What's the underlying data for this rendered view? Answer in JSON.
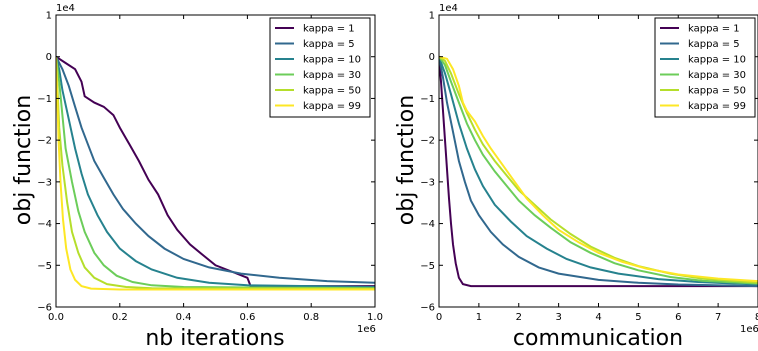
{
  "chart_data": [
    {
      "type": "line",
      "xlabel": "nb iterations",
      "ylabel": "obj function",
      "x_exponent": "1e6",
      "y_exponent": "1e4",
      "xlim": [
        0,
        1.0
      ],
      "ylim": [
        -6,
        1
      ],
      "xticks": [
        "0.0",
        "0.2",
        "0.4",
        "0.6",
        "0.8",
        "1.0"
      ],
      "yticks": [
        "1",
        "0",
        "−1",
        "−2",
        "−3",
        "−4",
        "−5",
        "−6"
      ],
      "grid": false,
      "legend_position": "top-right",
      "series": [
        {
          "name": "kappa = 1",
          "color": "#440154",
          "points": [
            [
              0,
              0
            ],
            [
              0.03,
              -0.15
            ],
            [
              0.06,
              -0.3
            ],
            [
              0.08,
              -0.6
            ],
            [
              0.09,
              -0.95
            ],
            [
              0.12,
              -1.1
            ],
            [
              0.15,
              -1.2
            ],
            [
              0.18,
              -1.4
            ],
            [
              0.2,
              -1.7
            ],
            [
              0.23,
              -2.1
            ],
            [
              0.26,
              -2.5
            ],
            [
              0.29,
              -2.95
            ],
            [
              0.32,
              -3.3
            ],
            [
              0.35,
              -3.8
            ],
            [
              0.38,
              -4.15
            ],
            [
              0.42,
              -4.5
            ],
            [
              0.46,
              -4.75
            ],
            [
              0.5,
              -5.0
            ],
            [
              0.55,
              -5.15
            ],
            [
              0.6,
              -5.3
            ],
            [
              0.61,
              -5.5
            ],
            [
              0.7,
              -5.5
            ],
            [
              1.0,
              -5.5
            ]
          ]
        },
        {
          "name": "kappa = 5",
          "color": "#31688e",
          "points": [
            [
              0,
              0
            ],
            [
              0.02,
              -0.3
            ],
            [
              0.04,
              -0.7
            ],
            [
              0.06,
              -1.2
            ],
            [
              0.08,
              -1.7
            ],
            [
              0.1,
              -2.1
            ],
            [
              0.12,
              -2.5
            ],
            [
              0.15,
              -2.9
            ],
            [
              0.18,
              -3.3
            ],
            [
              0.21,
              -3.65
            ],
            [
              0.25,
              -4.0
            ],
            [
              0.29,
              -4.3
            ],
            [
              0.34,
              -4.6
            ],
            [
              0.4,
              -4.85
            ],
            [
              0.48,
              -5.05
            ],
            [
              0.58,
              -5.2
            ],
            [
              0.7,
              -5.3
            ],
            [
              0.85,
              -5.38
            ],
            [
              1.0,
              -5.42
            ]
          ]
        },
        {
          "name": "kappa = 10",
          "color": "#26828e",
          "points": [
            [
              0,
              0
            ],
            [
              0.01,
              -0.3
            ],
            [
              0.02,
              -0.8
            ],
            [
              0.04,
              -1.5
            ],
            [
              0.06,
              -2.2
            ],
            [
              0.08,
              -2.8
            ],
            [
              0.1,
              -3.3
            ],
            [
              0.13,
              -3.8
            ],
            [
              0.16,
              -4.2
            ],
            [
              0.2,
              -4.6
            ],
            [
              0.25,
              -4.9
            ],
            [
              0.3,
              -5.1
            ],
            [
              0.38,
              -5.3
            ],
            [
              0.48,
              -5.42
            ],
            [
              0.6,
              -5.48
            ],
            [
              0.8,
              -5.5
            ],
            [
              1.0,
              -5.52
            ]
          ]
        },
        {
          "name": "kappa = 30",
          "color": "#6ccd5a",
          "points": [
            [
              0,
              0
            ],
            [
              0.01,
              -0.6
            ],
            [
              0.02,
              -1.4
            ],
            [
              0.03,
              -2.2
            ],
            [
              0.05,
              -3.0
            ],
            [
              0.07,
              -3.7
            ],
            [
              0.09,
              -4.2
            ],
            [
              0.12,
              -4.7
            ],
            [
              0.15,
              -5.0
            ],
            [
              0.19,
              -5.25
            ],
            [
              0.24,
              -5.4
            ],
            [
              0.3,
              -5.48
            ],
            [
              0.4,
              -5.52
            ],
            [
              1.0,
              -5.55
            ]
          ]
        },
        {
          "name": "kappa = 50",
          "color": "#b5de2b",
          "points": [
            [
              0,
              0
            ],
            [
              0.005,
              -0.8
            ],
            [
              0.01,
              -1.7
            ],
            [
              0.02,
              -2.6
            ],
            [
              0.035,
              -3.5
            ],
            [
              0.05,
              -4.2
            ],
            [
              0.07,
              -4.7
            ],
            [
              0.09,
              -5.05
            ],
            [
              0.12,
              -5.3
            ],
            [
              0.16,
              -5.45
            ],
            [
              0.22,
              -5.52
            ],
            [
              0.3,
              -5.55
            ],
            [
              1.0,
              -5.56
            ]
          ]
        },
        {
          "name": "kappa = 99",
          "color": "#fde725",
          "points": [
            [
              0,
              0
            ],
            [
              0.004,
              -1.0
            ],
            [
              0.008,
              -2.0
            ],
            [
              0.014,
              -3.0
            ],
            [
              0.022,
              -3.9
            ],
            [
              0.032,
              -4.6
            ],
            [
              0.045,
              -5.1
            ],
            [
              0.06,
              -5.35
            ],
            [
              0.08,
              -5.5
            ],
            [
              0.11,
              -5.56
            ],
            [
              0.2,
              -5.58
            ],
            [
              1.0,
              -5.58
            ]
          ]
        }
      ]
    },
    {
      "type": "line",
      "xlabel": "communication",
      "ylabel": "obj function",
      "x_exponent": "1e6",
      "y_exponent": "1e4",
      "xlim": [
        0,
        8
      ],
      "ylim": [
        -6,
        1
      ],
      "xticks": [
        "0",
        "1",
        "2",
        "3",
        "4",
        "5",
        "6",
        "7",
        "8"
      ],
      "yticks": [
        "1",
        "0",
        "−1",
        "−2",
        "−3",
        "−4",
        "−5",
        "−6"
      ],
      "grid": false,
      "legend_position": "top-right",
      "series": [
        {
          "name": "kappa = 1",
          "color": "#440154",
          "points": [
            [
              0,
              0
            ],
            [
              0.05,
              -0.6
            ],
            [
              0.1,
              -1.3
            ],
            [
              0.15,
              -2.0
            ],
            [
              0.2,
              -2.7
            ],
            [
              0.25,
              -3.4
            ],
            [
              0.3,
              -4.0
            ],
            [
              0.35,
              -4.5
            ],
            [
              0.42,
              -4.95
            ],
            [
              0.5,
              -5.3
            ],
            [
              0.6,
              -5.45
            ],
            [
              0.8,
              -5.5
            ],
            [
              2,
              -5.5
            ],
            [
              8,
              -5.5
            ]
          ]
        },
        {
          "name": "kappa = 5",
          "color": "#31688e",
          "points": [
            [
              0,
              0
            ],
            [
              0.1,
              -0.5
            ],
            [
              0.2,
              -1.1
            ],
            [
              0.35,
              -1.8
            ],
            [
              0.5,
              -2.5
            ],
            [
              0.65,
              -3.0
            ],
            [
              0.8,
              -3.45
            ],
            [
              1.0,
              -3.8
            ],
            [
              1.3,
              -4.2
            ],
            [
              1.6,
              -4.5
            ],
            [
              2.0,
              -4.8
            ],
            [
              2.5,
              -5.05
            ],
            [
              3.0,
              -5.2
            ],
            [
              4.0,
              -5.35
            ],
            [
              5.0,
              -5.42
            ],
            [
              6.0,
              -5.46
            ],
            [
              8,
              -5.5
            ]
          ]
        },
        {
          "name": "kappa = 10",
          "color": "#26828e",
          "points": [
            [
              0,
              0
            ],
            [
              0.15,
              -0.4
            ],
            [
              0.3,
              -0.9
            ],
            [
              0.5,
              -1.6
            ],
            [
              0.7,
              -2.2
            ],
            [
              0.9,
              -2.7
            ],
            [
              1.1,
              -3.1
            ],
            [
              1.4,
              -3.55
            ],
            [
              1.8,
              -3.95
            ],
            [
              2.2,
              -4.3
            ],
            [
              2.7,
              -4.6
            ],
            [
              3.2,
              -4.85
            ],
            [
              3.8,
              -5.05
            ],
            [
              4.5,
              -5.2
            ],
            [
              5.5,
              -5.33
            ],
            [
              6.5,
              -5.4
            ],
            [
              8,
              -5.46
            ]
          ]
        },
        {
          "name": "kappa = 30",
          "color": "#6ccd5a",
          "points": [
            [
              0,
              0
            ],
            [
              0.15,
              -0.2
            ],
            [
              0.3,
              -0.6
            ],
            [
              0.5,
              -1.1
            ],
            [
              0.7,
              -1.6
            ],
            [
              0.9,
              -2.0
            ],
            [
              1.1,
              -2.35
            ],
            [
              1.4,
              -2.75
            ],
            [
              1.7,
              -3.1
            ],
            [
              2.0,
              -3.45
            ],
            [
              2.4,
              -3.8
            ],
            [
              2.8,
              -4.1
            ],
            [
              3.3,
              -4.45
            ],
            [
              3.8,
              -4.7
            ],
            [
              4.4,
              -4.95
            ],
            [
              5.0,
              -5.12
            ],
            [
              5.8,
              -5.28
            ],
            [
              6.6,
              -5.37
            ],
            [
              8,
              -5.44
            ]
          ]
        },
        {
          "name": "kappa = 50",
          "color": "#b5de2b",
          "points": [
            [
              0,
              0
            ],
            [
              0.15,
              -0.1
            ],
            [
              0.3,
              -0.4
            ],
            [
              0.5,
              -0.9
            ],
            [
              0.7,
              -1.35
            ],
            [
              0.9,
              -1.75
            ],
            [
              1.1,
              -2.1
            ],
            [
              1.4,
              -2.5
            ],
            [
              1.7,
              -2.85
            ],
            [
              2.0,
              -3.2
            ],
            [
              2.4,
              -3.55
            ],
            [
              2.8,
              -3.9
            ],
            [
              3.3,
              -4.25
            ],
            [
              3.8,
              -4.55
            ],
            [
              4.4,
              -4.82
            ],
            [
              5.0,
              -5.02
            ],
            [
              5.8,
              -5.2
            ],
            [
              6.6,
              -5.32
            ],
            [
              8,
              -5.42
            ]
          ]
        },
        {
          "name": "kappa = 99",
          "color": "#fde725",
          "points": [
            [
              0,
              0
            ],
            [
              0.2,
              -0.05
            ],
            [
              0.35,
              -0.3
            ],
            [
              0.5,
              -0.7
            ],
            [
              0.6,
              -1.1
            ],
            [
              0.7,
              -1.3
            ],
            [
              0.9,
              -1.55
            ],
            [
              1.1,
              -1.9
            ],
            [
              1.3,
              -2.2
            ],
            [
              1.6,
              -2.6
            ],
            [
              1.9,
              -3.0
            ],
            [
              2.2,
              -3.4
            ],
            [
              2.6,
              -3.8
            ],
            [
              3.0,
              -4.15
            ],
            [
              3.5,
              -4.45
            ],
            [
              4.0,
              -4.7
            ],
            [
              4.6,
              -4.92
            ],
            [
              5.2,
              -5.08
            ],
            [
              6.0,
              -5.22
            ],
            [
              7.0,
              -5.32
            ],
            [
              8,
              -5.38
            ]
          ]
        }
      ]
    }
  ]
}
